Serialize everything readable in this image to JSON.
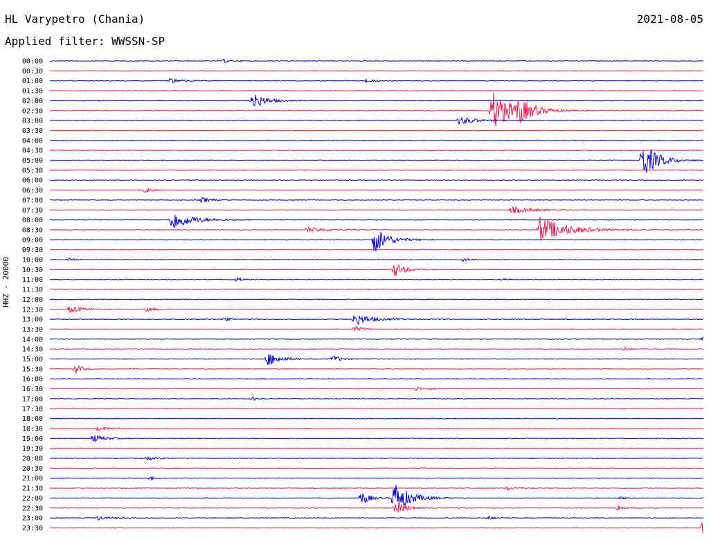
{
  "header": {
    "station": "HL Varypetro (Chania)",
    "date": "2021-08-05",
    "filter": "Applied filter: WWSSN-SP",
    "channel_label": "HHZ - 20000"
  },
  "colors": {
    "even_trace": "#0000e0",
    "odd_trace": "#ff1a50"
  },
  "chart_data": {
    "type": "line",
    "title": "HL Varypetro (Chania)",
    "subtitle": "Applied filter: WWSSN-SP",
    "xlabel": "",
    "ylabel": "HHZ - 20000",
    "row_labels": [
      "00:00",
      "00:30",
      "01:00",
      "01:30",
      "02:00",
      "02:30",
      "03:00",
      "03:30",
      "04:00",
      "04:30",
      "05:00",
      "05:30",
      "06:00",
      "06:30",
      "07:00",
      "07:30",
      "08:00",
      "08:30",
      "09:00",
      "09:30",
      "10:00",
      "10:30",
      "11:00",
      "11:30",
      "12:00",
      "12:30",
      "13:00",
      "13:30",
      "14:00",
      "14:30",
      "15:00",
      "15:30",
      "16:00",
      "16:30",
      "17:00",
      "17:30",
      "18:00",
      "18:30",
      "19:00",
      "19:30",
      "20:00",
      "20:30",
      "21:00",
      "21:30",
      "22:00",
      "22:30",
      "23:00",
      "23:30"
    ],
    "minutes_per_row": 30,
    "events": [
      {
        "row": 0,
        "minute": 8.0,
        "amp": 0.25,
        "dur": 0.8
      },
      {
        "row": 2,
        "minute": 5.5,
        "amp": 0.35,
        "dur": 1.2
      },
      {
        "row": 2,
        "minute": 14.5,
        "amp": 0.25,
        "dur": 0.8
      },
      {
        "row": 4,
        "minute": 9.3,
        "amp": 1.3,
        "dur": 1.2
      },
      {
        "row": 5,
        "minute": 20.3,
        "amp": 3.0,
        "dur": 1.8
      },
      {
        "row": 5,
        "minute": 21.5,
        "amp": 1.4,
        "dur": 1.5
      },
      {
        "row": 6,
        "minute": 18.8,
        "amp": 0.6,
        "dur": 1.5
      },
      {
        "row": 10,
        "minute": 27.2,
        "amp": 2.6,
        "dur": 1.5
      },
      {
        "row": 13,
        "minute": 4.4,
        "amp": 0.5,
        "dur": 0.5
      },
      {
        "row": 14,
        "minute": 7.0,
        "amp": 0.4,
        "dur": 0.8
      },
      {
        "row": 15,
        "minute": 21.2,
        "amp": 0.5,
        "dur": 2.0
      },
      {
        "row": 16,
        "minute": 5.6,
        "amp": 1.5,
        "dur": 1.8
      },
      {
        "row": 17,
        "minute": 11.8,
        "amp": 0.4,
        "dur": 2.0
      },
      {
        "row": 17,
        "minute": 22.5,
        "amp": 1.9,
        "dur": 2.5
      },
      {
        "row": 18,
        "minute": 14.9,
        "amp": 2.0,
        "dur": 1.3
      },
      {
        "row": 20,
        "minute": 0.9,
        "amp": 0.3,
        "dur": 0.5
      },
      {
        "row": 20,
        "minute": 19.0,
        "amp": 0.3,
        "dur": 0.5
      },
      {
        "row": 21,
        "minute": 15.8,
        "amp": 1.1,
        "dur": 1.0
      },
      {
        "row": 22,
        "minute": 8.6,
        "amp": 0.3,
        "dur": 0.5
      },
      {
        "row": 22,
        "minute": 20.8,
        "amp": 0.2,
        "dur": 0.5
      },
      {
        "row": 25,
        "minute": 0.9,
        "amp": 0.5,
        "dur": 1.2
      },
      {
        "row": 25,
        "minute": 4.4,
        "amp": 0.3,
        "dur": 1.0
      },
      {
        "row": 26,
        "minute": 8.0,
        "amp": 0.3,
        "dur": 0.5
      },
      {
        "row": 26,
        "minute": 14.0,
        "amp": 0.9,
        "dur": 1.5
      },
      {
        "row": 27,
        "minute": 14.0,
        "amp": 0.4,
        "dur": 0.8
      },
      {
        "row": 28,
        "minute": 30.0,
        "amp": 0.3,
        "dur": 0.8
      },
      {
        "row": 29,
        "minute": 26.4,
        "amp": 0.3,
        "dur": 0.5
      },
      {
        "row": 30,
        "minute": 10.0,
        "amp": 1.0,
        "dur": 1.2
      },
      {
        "row": 30,
        "minute": 13.0,
        "amp": 0.5,
        "dur": 0.8
      },
      {
        "row": 31,
        "minute": 1.2,
        "amp": 0.7,
        "dur": 0.6
      },
      {
        "row": 33,
        "minute": 16.8,
        "amp": 0.3,
        "dur": 1.0
      },
      {
        "row": 34,
        "minute": 9.3,
        "amp": 0.3,
        "dur": 0.5
      },
      {
        "row": 37,
        "minute": 2.2,
        "amp": 0.4,
        "dur": 1.0
      },
      {
        "row": 38,
        "minute": 2.0,
        "amp": 0.5,
        "dur": 1.2
      },
      {
        "row": 40,
        "minute": 4.5,
        "amp": 0.25,
        "dur": 1.0
      },
      {
        "row": 42,
        "minute": 4.6,
        "amp": 0.3,
        "dur": 0.5
      },
      {
        "row": 43,
        "minute": 21.0,
        "amp": 0.3,
        "dur": 0.8
      },
      {
        "row": 44,
        "minute": 14.3,
        "amp": 1.0,
        "dur": 0.8
      },
      {
        "row": 44,
        "minute": 15.8,
        "amp": 2.3,
        "dur": 1.5
      },
      {
        "row": 44,
        "minute": 26.2,
        "amp": 0.2,
        "dur": 0.4
      },
      {
        "row": 45,
        "minute": 15.9,
        "amp": 1.0,
        "dur": 1.0
      },
      {
        "row": 45,
        "minute": 26.1,
        "amp": 0.5,
        "dur": 0.5
      },
      {
        "row": 46,
        "minute": 2.2,
        "amp": 0.3,
        "dur": 1.0
      },
      {
        "row": 46,
        "minute": 20.1,
        "amp": 0.3,
        "dur": 0.5
      },
      {
        "row": 47,
        "minute": 30.0,
        "amp": 2.5,
        "dur": 1.5
      }
    ]
  }
}
